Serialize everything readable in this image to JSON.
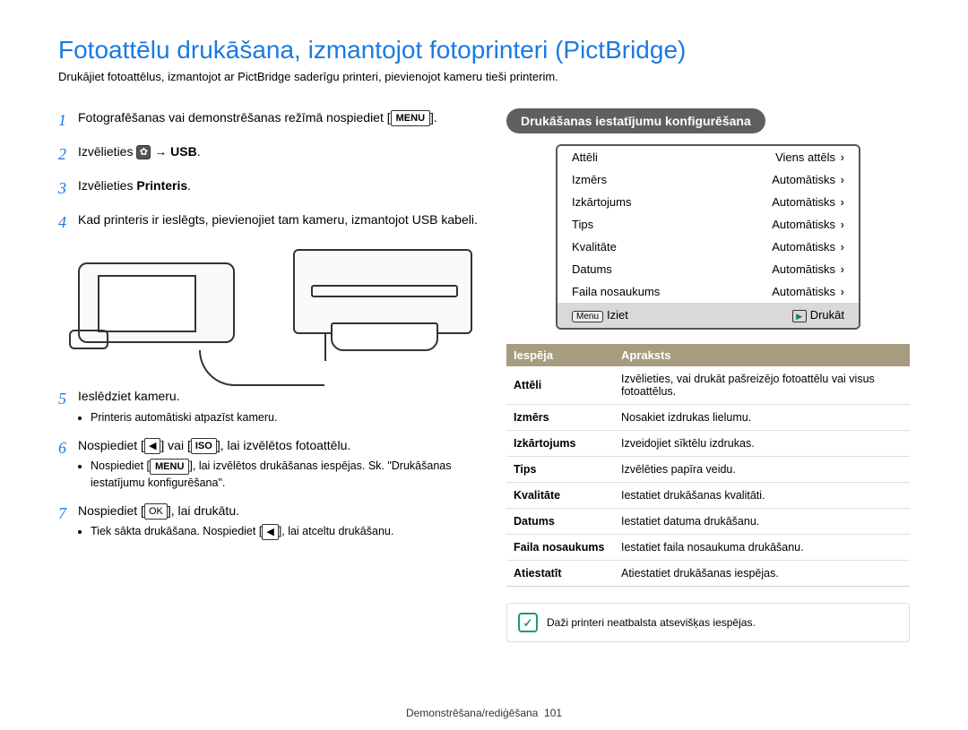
{
  "title": "Fotoattēlu drukāšana, izmantojot fotoprinteri (PictBridge)",
  "subtitle": "Drukājiet fotoattēlus, izmantojot ar PictBridge saderīgu printeri, pievienojot kameru tieši printerim.",
  "steps": {
    "s1": {
      "num": "1",
      "text_a": "Fotografēšanas vai demonstrēšanas režīmā nospiediet [",
      "menu": "MENU",
      "text_b": "]."
    },
    "s2": {
      "num": "2",
      "text_a": "Izvēlieties ",
      "gear": "✿",
      "arrow": " → ",
      "usb": "USB",
      "dot": "."
    },
    "s3": {
      "num": "3",
      "text_a": "Izvēlieties ",
      "printeris": "Printeris",
      "dot": "."
    },
    "s4": {
      "num": "4",
      "text": "Kad printeris ir ieslēgts, pievienojiet tam kameru, izmantojot USB kabeli."
    },
    "s5": {
      "num": "5",
      "text": "Ieslēdziet kameru.",
      "bullet": "Printeris automātiski atpazīst kameru."
    },
    "s6": {
      "num": "6",
      "text_a": "Nospiediet [",
      "k1": "◀",
      "text_b": "] vai [",
      "k2": "ISO",
      "text_c": "], lai izvēlētos fotoattēlu.",
      "b_a": "Nospiediet [",
      "b_menu": "MENU",
      "b_b": "], lai izvēlētos drukāšanas iespējas. Sk. \"Drukāšanas iestatījumu konfigurēšana\"."
    },
    "s7": {
      "num": "7",
      "text_a": "Nospiediet [",
      "k1": "OK",
      "text_b": "], lai drukātu.",
      "b_a": "Tiek sākta drukāšana. Nospiediet [",
      "b_k": "◀",
      "b_b": "], lai atceltu drukāšanu."
    }
  },
  "config": {
    "pill": "Drukāšanas iestatījumu konfigurēšana",
    "rows": [
      {
        "l": "Attēli",
        "r": "Viens attēls"
      },
      {
        "l": "Izmērs",
        "r": "Automātisks"
      },
      {
        "l": "Izkārtojums",
        "r": "Automātisks"
      },
      {
        "l": "Tips",
        "r": "Automātisks"
      },
      {
        "l": "Kvalitāte",
        "r": "Automātisks"
      },
      {
        "l": "Datums",
        "r": "Automātisks"
      },
      {
        "l": "Faila nosaukums",
        "r": "Automātisks"
      }
    ],
    "foot_l_badge": "Menu",
    "foot_l": "Iziet",
    "foot_r_badge": "▶",
    "foot_r": "Drukāt"
  },
  "table": {
    "h1": "Iespēja",
    "h2": "Apraksts",
    "rows": [
      {
        "k": "Attēli",
        "v": "Izvēlieties, vai drukāt pašreizējo fotoattēlu vai visus fotoattēlus."
      },
      {
        "k": "Izmērs",
        "v": "Nosakiet izdrukas lielumu."
      },
      {
        "k": "Izkārtojums",
        "v": "Izveidojiet sīktēlu izdrukas."
      },
      {
        "k": "Tips",
        "v": "Izvēlēties papīra veidu."
      },
      {
        "k": "Kvalitāte",
        "v": "Iestatiet drukāšanas kvalitāti."
      },
      {
        "k": "Datums",
        "v": "Iestatiet datuma drukāšanu."
      },
      {
        "k": "Faila nosaukums",
        "v": "Iestatiet faila nosaukuma drukāšanu."
      },
      {
        "k": "Atiestatīt",
        "v": "Atiestatiet drukāšanas iespējas."
      }
    ]
  },
  "note_icon": "✓",
  "note": "Daži printeri neatbalsta atsevišķas iespējas.",
  "footer_a": "Demonstrēšana/rediģēšana",
  "footer_b": "101"
}
